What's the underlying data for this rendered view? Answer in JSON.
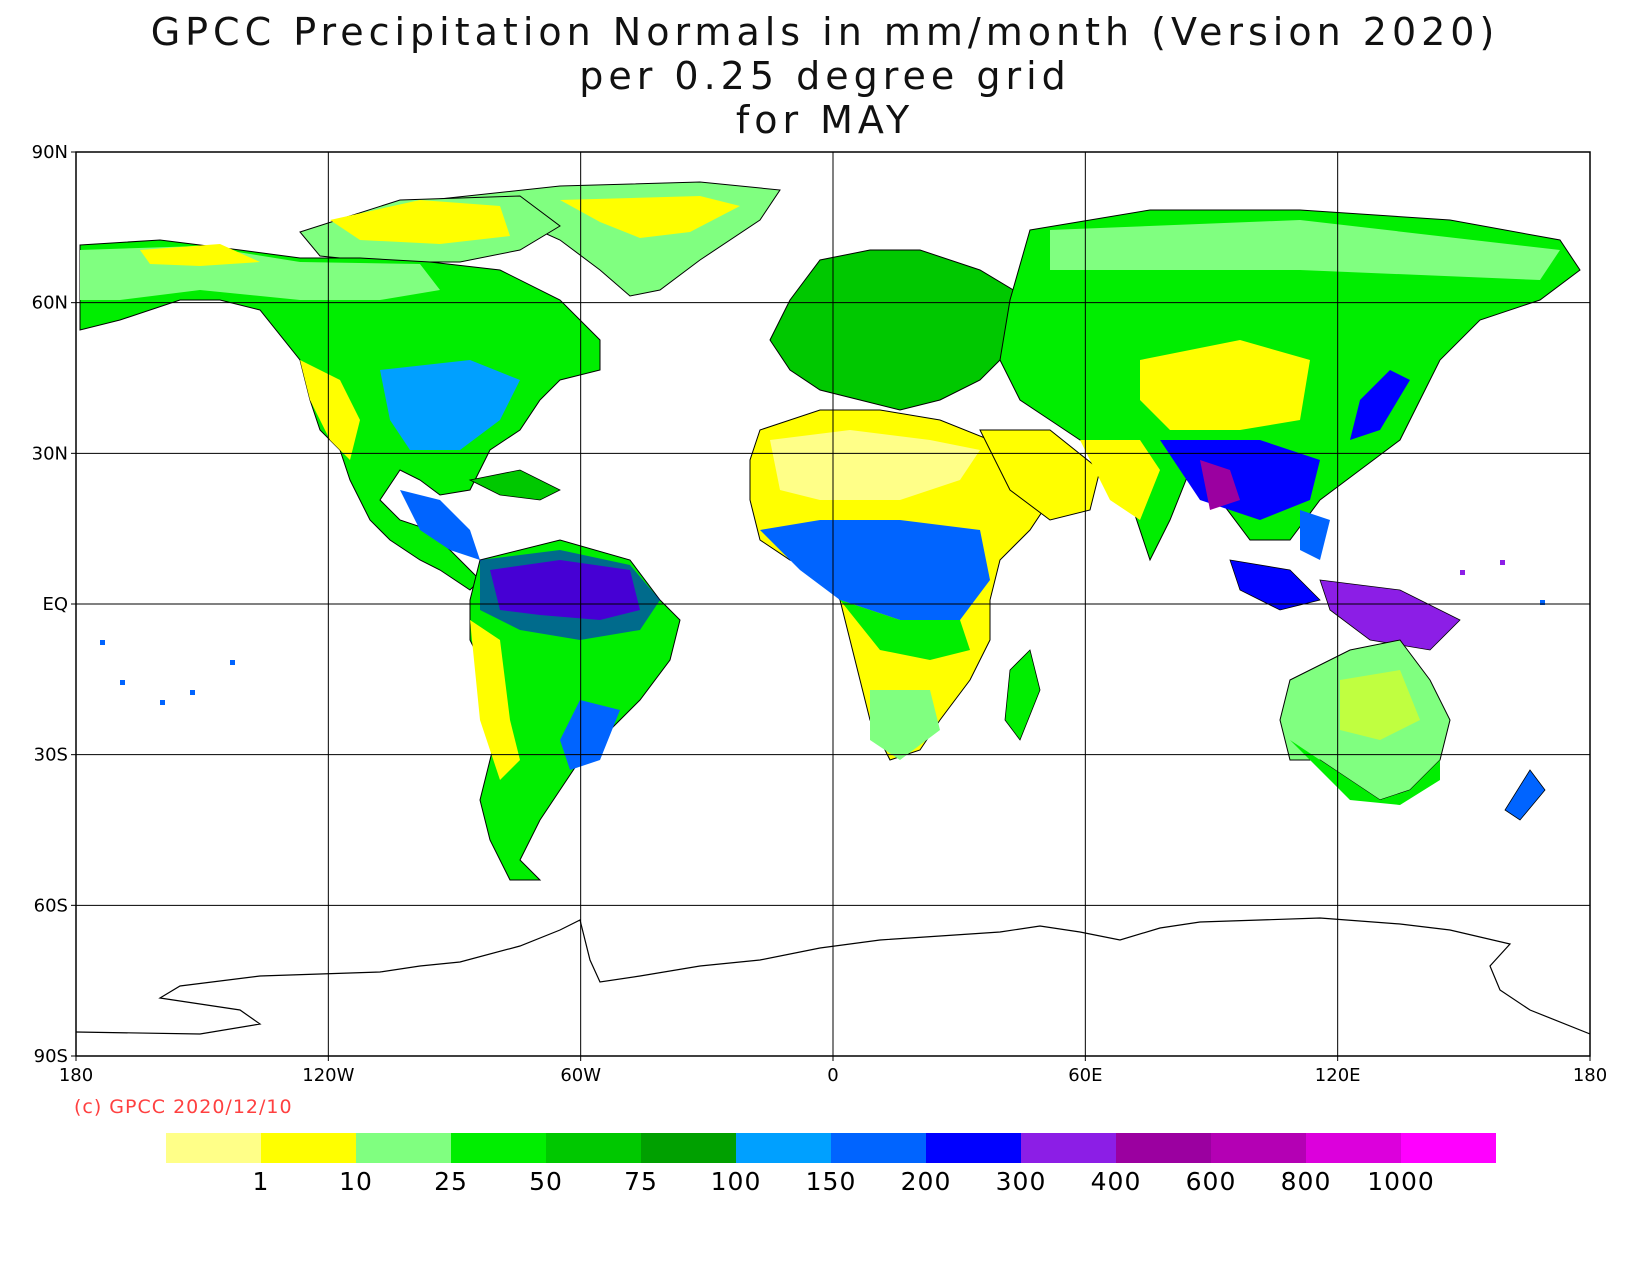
{
  "title": {
    "line1": "GPCC Precipitation Normals in mm/month (Version 2020)",
    "line2": "per 0.25 degree grid",
    "line3": "for MAY"
  },
  "copyright": "(c) GPCC 2020/12/10",
  "axes": {
    "lat_labels": [
      "90N",
      "60N",
      "30N",
      "EQ",
      "30S",
      "60S",
      "90S"
    ],
    "lon_labels": [
      "180",
      "120W",
      "60W",
      "0",
      "60E",
      "120E",
      "180"
    ]
  },
  "legend": {
    "colors": [
      "#ffff88",
      "#ffff00",
      "#80ff80",
      "#00ee00",
      "#00c800",
      "#00a000",
      "#00a0ff",
      "#0064ff",
      "#0000ff",
      "#8c1ee6",
      "#9b00a0",
      "#b400b4",
      "#dc00dc",
      "#ff00ff"
    ],
    "labels": [
      "1",
      "10",
      "25",
      "50",
      "75",
      "100",
      "150",
      "200",
      "300",
      "400",
      "600",
      "800",
      "1000"
    ]
  },
  "chart_data": {
    "type": "heatmap",
    "projection": "equirectangular",
    "lon_range": [
      -180,
      180
    ],
    "lat_range": [
      -90,
      90
    ],
    "grid": true,
    "grid_lon_step": 60,
    "grid_lat_step": 30,
    "units": "mm/month"
  }
}
